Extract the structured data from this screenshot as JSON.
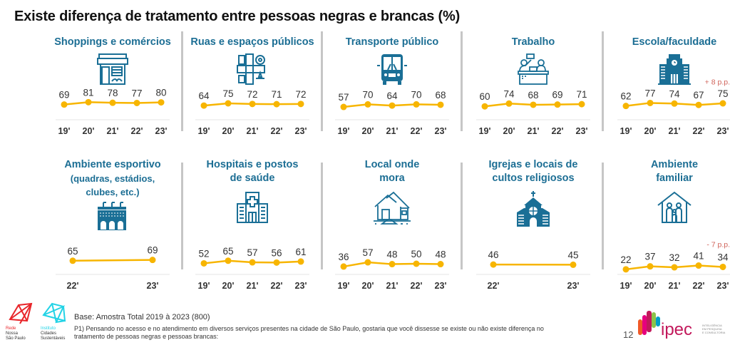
{
  "title": "Existe diferença de tratamento entre pessoas negras e brancas (%)",
  "colors": {
    "line": "#f7b500",
    "title_blue": "#1c6e94",
    "note_red": "#d0635a",
    "icon_blue": "#1a6f96"
  },
  "chart_data": [
    {
      "type": "line",
      "title": "Shoppings e comércios",
      "icon": "storefront-icon",
      "x": [
        "19'",
        "20'",
        "21'",
        "22'",
        "23'"
      ],
      "values": [
        69,
        81,
        78,
        77,
        80
      ],
      "note": ""
    },
    {
      "type": "line",
      "title": "Ruas e espaços públicos",
      "icon": "street-map-icon",
      "x": [
        "19'",
        "20'",
        "21'",
        "22'",
        "23'"
      ],
      "values": [
        64,
        75,
        72,
        71,
        72
      ],
      "note": ""
    },
    {
      "type": "line",
      "title": "Transporte público",
      "icon": "bus-icon",
      "x": [
        "19'",
        "20'",
        "21'",
        "22'",
        "23'"
      ],
      "values": [
        57,
        70,
        64,
        70,
        68
      ],
      "note": ""
    },
    {
      "type": "line",
      "title": "Trabalho",
      "icon": "office-workers-icon",
      "x": [
        "19'",
        "20'",
        "21'",
        "22'",
        "23'"
      ],
      "values": [
        60,
        74,
        68,
        69,
        71
      ],
      "note": ""
    },
    {
      "type": "line",
      "title": "Escola/faculdade",
      "icon": "school-building-icon",
      "x": [
        "19'",
        "20'",
        "21'",
        "22'",
        "23'"
      ],
      "values": [
        62,
        77,
        74,
        67,
        75
      ],
      "note": "+ 8 p.p."
    },
    {
      "type": "line",
      "title": "Ambiente esportivo (quadras, estádios, clubes, etc.)",
      "title_lines": [
        "Ambiente esportivo",
        "(quadras, estádios,",
        "clubes, etc.)"
      ],
      "icon": "stadium-icon",
      "x": [
        "22'",
        "23'"
      ],
      "values": [
        65,
        69
      ],
      "note": ""
    },
    {
      "type": "line",
      "title": "Hospitais e postos de saúde",
      "title_lines": [
        "Hospitais e postos",
        "de saúde"
      ],
      "icon": "hospital-icon",
      "x": [
        "19'",
        "20'",
        "21'",
        "22'",
        "23'"
      ],
      "values": [
        52,
        65,
        57,
        56,
        61
      ],
      "note": ""
    },
    {
      "type": "line",
      "title": "Local onde mora",
      "title_lines": [
        "Local onde",
        "mora"
      ],
      "icon": "house-icon",
      "x": [
        "19'",
        "20'",
        "21'",
        "22'",
        "23'"
      ],
      "values": [
        36,
        57,
        48,
        50,
        48
      ],
      "note": ""
    },
    {
      "type": "line",
      "title": "Igrejas e locais de cultos religiosos",
      "title_lines": [
        "Igrejas e locais de",
        "cultos religiosos"
      ],
      "icon": "church-icon",
      "x": [
        "22'",
        "23'"
      ],
      "values": [
        46,
        45
      ],
      "note": ""
    },
    {
      "type": "line",
      "title": "Ambiente familiar",
      "title_lines": [
        "Ambiente",
        "familiar"
      ],
      "icon": "family-home-icon",
      "x": [
        "19'",
        "20'",
        "21'",
        "22'",
        "23'"
      ],
      "values": [
        22,
        37,
        32,
        41,
        34
      ],
      "note": "- 7 p.p."
    }
  ],
  "footer": {
    "base": "Base: Amostra Total 2019 à 2023 (800)",
    "question": "P1) Pensando no acesso e no atendimento em diversos serviços presentes na cidade de São Paulo, gostaria que você dissesse se existe ou não existe diferença no tratamento de pessoas negras e pessoas brancas:",
    "page_number": "12",
    "logo_rede": [
      "Rede",
      "Nossa",
      "São Paulo"
    ],
    "logo_instituto": [
      "Instituto",
      "Cidades",
      "Sustentáveis"
    ],
    "logo_ipec": "ipec",
    "logo_ipec_tagline": [
      "INTELIGÊNCIA",
      "EM PESQUISA",
      "E CONSULTORIA"
    ]
  }
}
